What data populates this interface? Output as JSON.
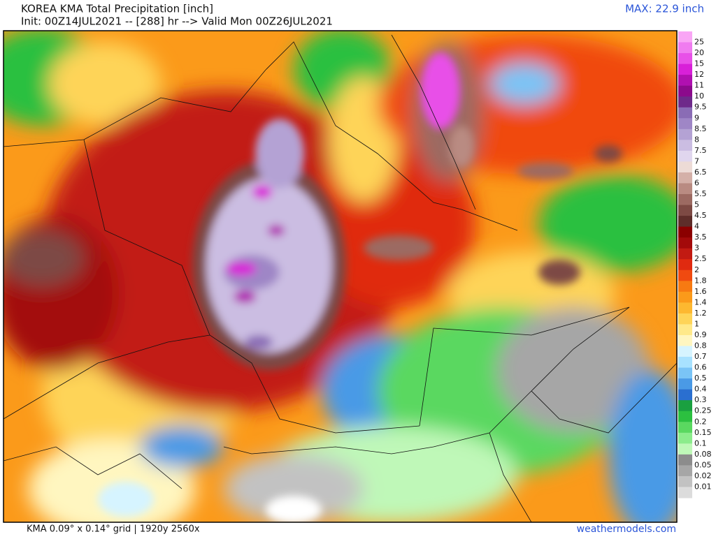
{
  "header": {
    "title": "KOREA KMA Total Precipitation [inch]",
    "init": "Init: 00Z14JUL2021 -- [288] hr --> Valid Mon 00Z26JUL2021",
    "max": "MAX: 22.9 inch"
  },
  "legend": {
    "labels": [
      "25",
      "20",
      "15",
      "12",
      "11",
      "10",
      "9.5",
      "9",
      "8.5",
      "8",
      "7.5",
      "7",
      "6.5",
      "6",
      "5.5",
      "5",
      "4.5",
      "4",
      "3.5",
      "3",
      "2.5",
      "2",
      "1.8",
      "1.6",
      "1.4",
      "1.2",
      "1",
      "0.9",
      "0.8",
      "0.7",
      "0.6",
      "0.5",
      "0.4",
      "0.3",
      "0.25",
      "0.2",
      "0.15",
      "0.1",
      "0.08",
      "0.05",
      "0.02",
      "0.01"
    ],
    "colors": [
      "#f9a6f5",
      "#f07cf0",
      "#e850e8",
      "#d820d8",
      "#b010b0",
      "#8c0a8c",
      "#6e2a8a",
      "#8a6cb5",
      "#9f86c6",
      "#b4a2d4",
      "#cbbde2",
      "#e0d6ee",
      "#eddbd6",
      "#d4b0a8",
      "#b98b82",
      "#9c6a62",
      "#7d4a44",
      "#5e2e2a",
      "#8b0000",
      "#a30a0a",
      "#c21a12",
      "#e02a10",
      "#f04a10",
      "#f77a12",
      "#fb9a1a",
      "#fdb830",
      "#fed458",
      "#ffe98a",
      "#fff6c0",
      "#d6f4ff",
      "#a8e2ff",
      "#7ac4f6",
      "#4a9ae6",
      "#2a6fd0",
      "#1aa040",
      "#2cc040",
      "#5ad860",
      "#8cec8c",
      "#bff8b8",
      "#8c8c8c",
      "#a6a6a6",
      "#c2c2c2",
      "#dcdcdc"
    ]
  },
  "footer": {
    "grid": "KMA 0.09° x 0.14° grid | 1920y 2560x",
    "site": "weathermodels.com"
  }
}
